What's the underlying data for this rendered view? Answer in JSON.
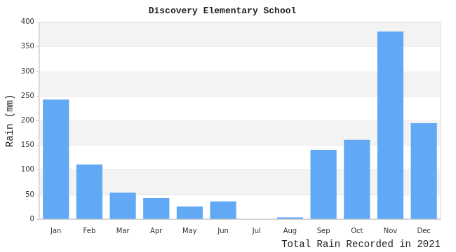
{
  "chart_data": {
    "type": "bar",
    "title": "Discovery Elementary School",
    "y_label": "Rain (mm)",
    "x_label": "Total Rain Recorded in 2021",
    "categories": [
      "Jan",
      "Feb",
      "Mar",
      "Apr",
      "May",
      "Jun",
      "Jul",
      "Aug",
      "Sep",
      "Oct",
      "Nov",
      "Dec"
    ],
    "values": [
      243,
      111,
      54,
      43,
      26,
      36,
      0,
      4,
      141,
      161,
      381,
      195
    ],
    "color": "#61a9f5",
    "ylim": [
      0,
      400
    ],
    "yticks": [
      0,
      50,
      100,
      150,
      200,
      250,
      300,
      350,
      400
    ],
    "grid": true
  }
}
